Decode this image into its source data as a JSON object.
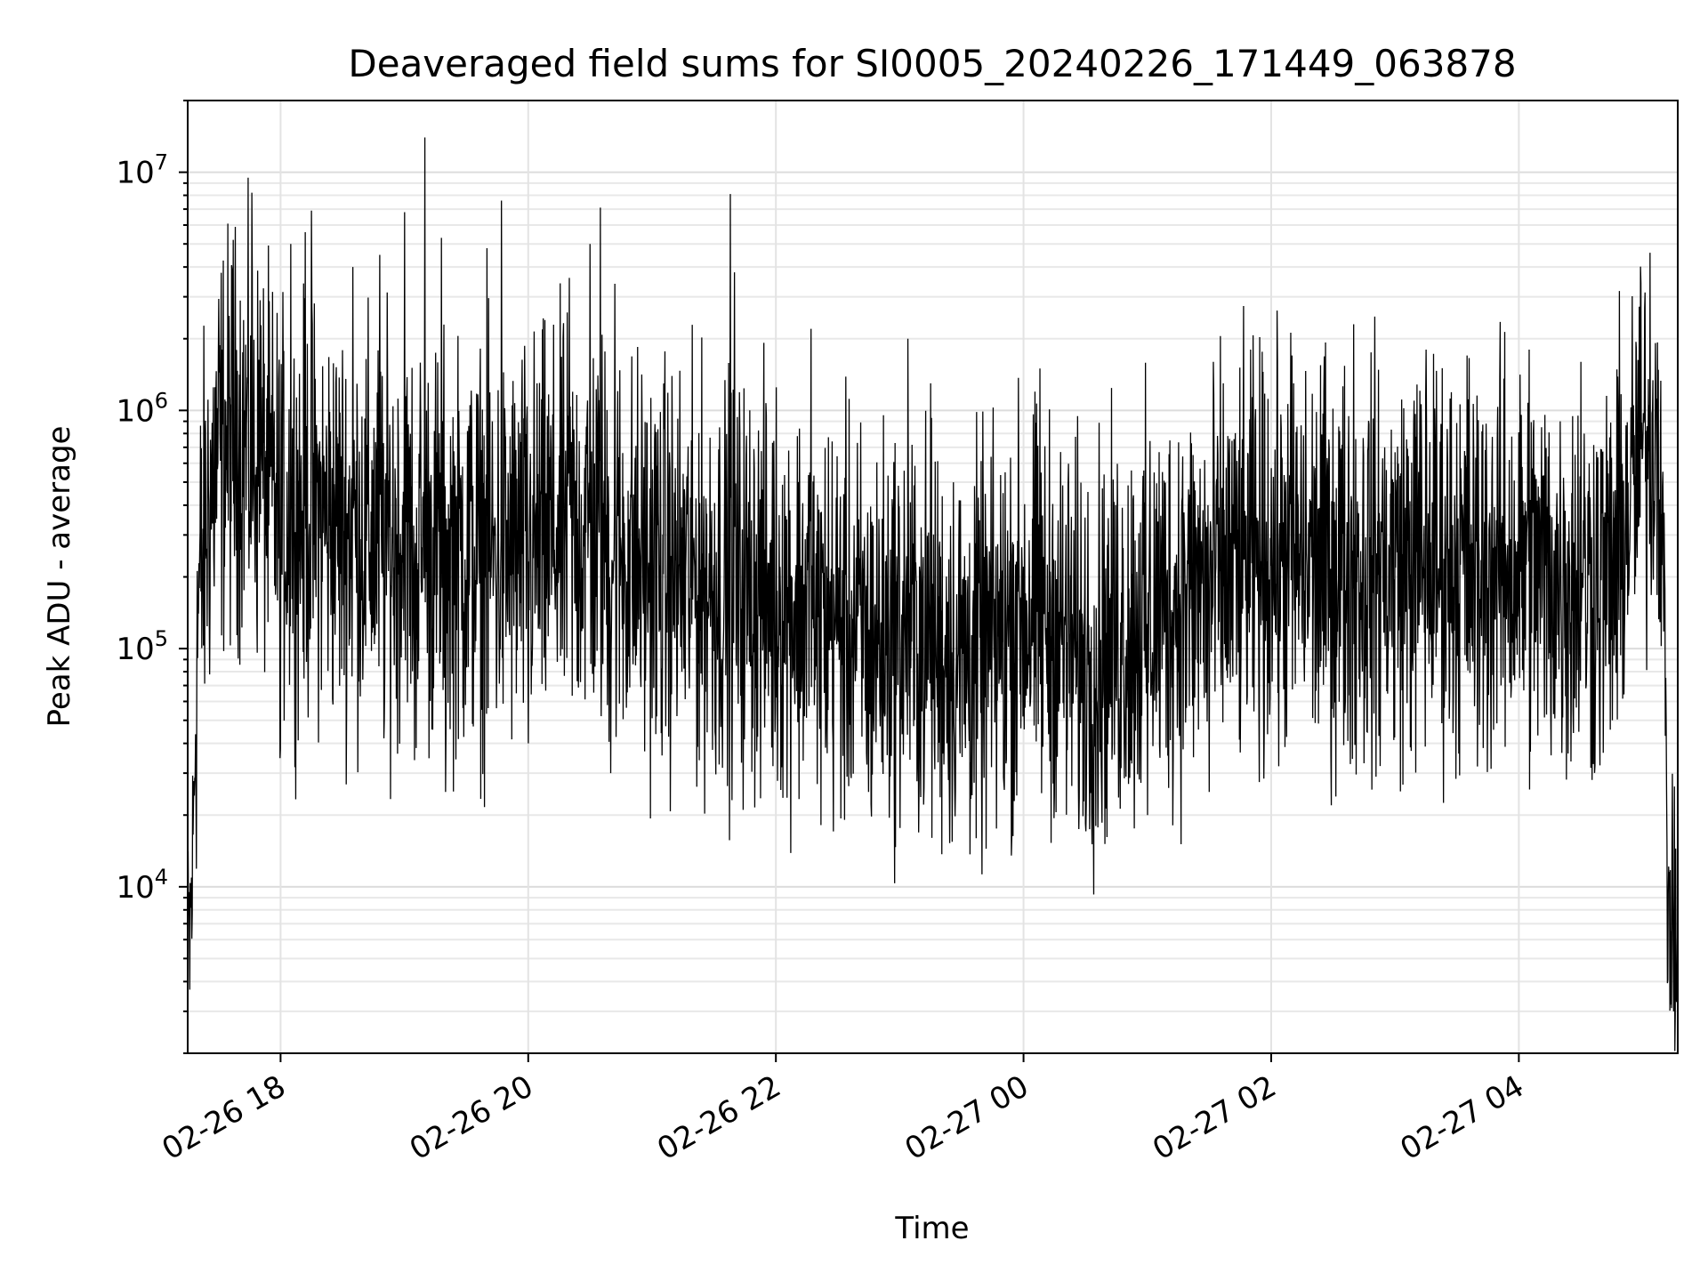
{
  "chart_data": {
    "type": "line",
    "title": "Deaveraged field sums for SI0005_20240226_171449_063878",
    "xlabel": "Time",
    "ylabel": "Peak ADU - average",
    "yscale": "log",
    "ylim": [
      2000,
      20000000
    ],
    "xlim": [
      "02-26 17:15",
      "02-27 05:17"
    ],
    "grid": "major and minor, light gray",
    "line_color": "#000000",
    "x_ticks": [
      {
        "time": "02-26 18:00",
        "label": "02-26 18"
      },
      {
        "time": "02-26 20:00",
        "label": "02-26 20"
      },
      {
        "time": "02-26 22:00",
        "label": "02-26 22"
      },
      {
        "time": "02-27 00:00",
        "label": "02-27 00"
      },
      {
        "time": "02-27 02:00",
        "label": "02-27 02"
      },
      {
        "time": "02-27 04:00",
        "label": "02-27 04"
      }
    ],
    "y_ticks": [
      {
        "value": 10000,
        "base": "10",
        "exp": "4"
      },
      {
        "value": 100000,
        "base": "10",
        "exp": "5"
      },
      {
        "value": 1000000,
        "base": "10",
        "exp": "6"
      },
      {
        "value": 10000000,
        "base": "10",
        "exp": "7"
      }
    ],
    "series": [
      {
        "points": [
          [
            "02-26 17:15",
            5000
          ],
          [
            "02-26 17:17",
            9000
          ],
          [
            "02-26 17:20",
            150000
          ],
          [
            "02-26 17:25",
            400000
          ],
          [
            "02-26 17:30",
            700000
          ],
          [
            "02-26 17:40",
            800000
          ],
          [
            "02-26 17:50",
            600000
          ],
          [
            "02-26 18:00",
            350000
          ],
          [
            "02-26 18:15",
            380000
          ],
          [
            "02-26 18:30",
            330000
          ],
          [
            "02-26 18:45",
            300000
          ],
          [
            "02-26 19:00",
            280000
          ],
          [
            "02-26 19:15",
            270000
          ],
          [
            "02-26 19:30",
            250000
          ],
          [
            "02-26 19:45",
            240000
          ],
          [
            "02-26 20:00",
            260000
          ],
          [
            "02-26 20:15",
            300000
          ],
          [
            "02-26 20:30",
            320000
          ],
          [
            "02-26 20:45",
            250000
          ],
          [
            "02-26 21:00",
            220000
          ],
          [
            "02-26 21:15",
            200000
          ],
          [
            "02-26 21:30",
            190000
          ],
          [
            "02-26 21:45",
            180000
          ],
          [
            "02-26 22:00",
            170000
          ],
          [
            "02-26 22:15",
            150000
          ],
          [
            "02-26 22:30",
            130000
          ],
          [
            "02-26 22:45",
            110000
          ],
          [
            "02-26 23:00",
            120000
          ],
          [
            "02-26 23:15",
            110000
          ],
          [
            "02-26 23:30",
            90000
          ],
          [
            "02-26 23:45",
            100000
          ],
          [
            "02-27 00:00",
            150000
          ],
          [
            "02-27 00:15",
            120000
          ],
          [
            "02-27 00:30",
            90000
          ],
          [
            "02-27 00:45",
            110000
          ],
          [
            "02-27 01:00",
            140000
          ],
          [
            "02-27 01:15",
            160000
          ],
          [
            "02-27 01:30",
            190000
          ],
          [
            "02-27 01:45",
            220000
          ],
          [
            "02-27 02:00",
            240000
          ],
          [
            "02-27 02:15",
            230000
          ],
          [
            "02-27 02:30",
            220000
          ],
          [
            "02-27 02:45",
            230000
          ],
          [
            "02-27 03:00",
            220000
          ],
          [
            "02-27 03:15",
            240000
          ],
          [
            "02-27 03:30",
            230000
          ],
          [
            "02-27 03:45",
            220000
          ],
          [
            "02-27 04:00",
            230000
          ],
          [
            "02-27 04:15",
            200000
          ],
          [
            "02-27 04:30",
            190000
          ],
          [
            "02-27 04:45",
            200000
          ],
          [
            "02-27 05:00",
            700000
          ],
          [
            "02-27 05:08",
            900000
          ],
          [
            "02-27 05:10",
            300000
          ],
          [
            "02-27 05:12",
            10000
          ],
          [
            "02-27 05:15",
            6000
          ],
          [
            "02-27 05:17",
            5000
          ]
        ],
        "spikes": [
          [
            "02-26 17:37",
            5200000
          ],
          [
            "02-26 17:46",
            8200000
          ],
          [
            "02-26 17:50",
            2900000
          ],
          [
            "02-26 18:05",
            5000000
          ],
          [
            "02-26 18:12",
            5600000
          ],
          [
            "02-26 18:15",
            6900000
          ],
          [
            "02-26 18:35",
            4000000
          ],
          [
            "02-26 18:48",
            4500000
          ],
          [
            "02-26 19:00",
            6800000
          ],
          [
            "02-26 19:10",
            14000000
          ],
          [
            "02-26 19:18",
            5300000
          ],
          [
            "02-26 19:40",
            4800000
          ],
          [
            "02-26 19:47",
            7600000
          ],
          [
            "02-26 20:20",
            3600000
          ],
          [
            "02-26 20:30",
            5000000
          ],
          [
            "02-26 20:35",
            7100000
          ],
          [
            "02-26 20:42",
            3400000
          ],
          [
            "02-26 21:38",
            8100000
          ],
          [
            "02-26 21:40",
            3800000
          ],
          [
            "02-26 22:17",
            2200000
          ],
          [
            "02-26 23:04",
            2000000
          ],
          [
            "02-26 23:15",
            1300000
          ],
          [
            "02-27 00:08",
            1500000
          ],
          [
            "02-27 01:50",
            1800000
          ],
          [
            "02-27 02:10",
            1700000
          ],
          [
            "02-27 02:40",
            2300000
          ],
          [
            "02-27 03:15",
            1800000
          ],
          [
            "02-27 03:35",
            1700000
          ],
          [
            "02-27 04:05",
            1800000
          ],
          [
            "02-27 04:30",
            1600000
          ],
          [
            "02-27 05:01",
            2700000
          ]
        ],
        "dips": [
          [
            "02-26 17:16",
            3700
          ],
          [
            "02-26 18:00",
            38000
          ],
          [
            "02-26 18:50",
            42000
          ],
          [
            "02-26 19:05",
            34000
          ],
          [
            "02-26 19:20",
            25000
          ],
          [
            "02-26 20:00",
            40000
          ],
          [
            "02-26 20:40",
            30000
          ],
          [
            "02-26 22:20",
            27000
          ],
          [
            "02-26 22:45",
            25000
          ],
          [
            "02-26 23:37",
            16000
          ],
          [
            "02-27 00:15",
            24000
          ],
          [
            "02-27 00:35",
            18000
          ],
          [
            "02-27 01:00",
            20000
          ],
          [
            "02-27 01:30",
            25000
          ],
          [
            "02-27 02:45",
            33000
          ],
          [
            "02-27 03:40",
            32000
          ],
          [
            "02-27 05:15",
            3000
          ]
        ]
      }
    ]
  }
}
